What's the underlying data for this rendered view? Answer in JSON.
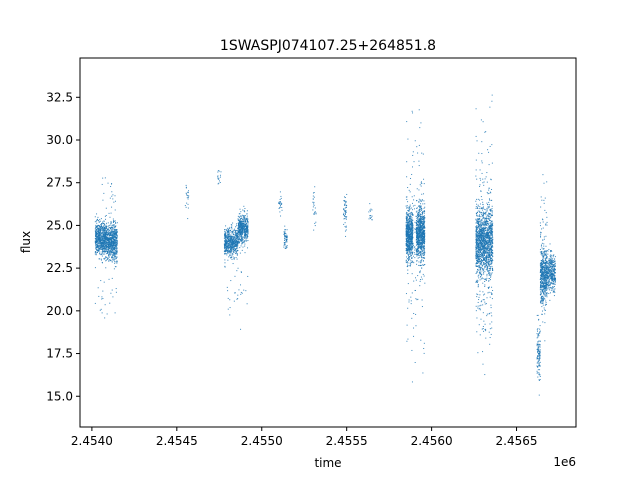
{
  "chart_data": {
    "type": "scatter",
    "title": "1SWASPJ074107.25+264851.8",
    "xlabel": "time",
    "ylabel": "flux",
    "x_offset_label": "1e6",
    "xlim": [
      2.45393,
      2.45685
    ],
    "ylim": [
      13.2,
      34.8
    ],
    "x_ticks": [
      2.454,
      2.4545,
      2.455,
      2.4555,
      2.456,
      2.4565
    ],
    "x_tick_labels": [
      "2.4540",
      "2.4545",
      "2.4550",
      "2.4555",
      "2.4560",
      "2.4565"
    ],
    "y_ticks": [
      15.0,
      17.5,
      20.0,
      22.5,
      25.0,
      27.5,
      30.0,
      32.5
    ],
    "y_tick_labels": [
      "15.0",
      "17.5",
      "20.0",
      "22.5",
      "25.0",
      "27.5",
      "30.0",
      "32.5"
    ],
    "grid": false,
    "marker_color": "#1f77b4",
    "clusters": [
      {
        "x_range": [
          2.45402,
          2.45409
        ],
        "y_center": 24.2,
        "y_spread": 0.8,
        "n": 700
      },
      {
        "x_range": [
          2.45409,
          2.45415
        ],
        "y_center": 24.0,
        "y_spread": 0.9,
        "n": 600
      },
      {
        "x_range": [
          2.45406,
          2.45414
        ],
        "y_center": 26.5,
        "y_spread": 1.4,
        "n": 25
      },
      {
        "x_range": [
          2.45402,
          2.45415
        ],
        "y_center": 20.5,
        "y_spread": 1.5,
        "n": 25
      },
      {
        "x_range": [
          2.45455,
          2.45457
        ],
        "y_center": 26.5,
        "y_spread": 0.7,
        "n": 20
      },
      {
        "x_range": [
          2.45474,
          2.45476
        ],
        "y_center": 27.8,
        "y_spread": 0.4,
        "n": 15
      },
      {
        "x_range": [
          2.45478,
          2.45486
        ],
        "y_center": 24.0,
        "y_spread": 0.7,
        "n": 600
      },
      {
        "x_range": [
          2.45486,
          2.45492
        ],
        "y_center": 24.8,
        "y_spread": 0.7,
        "n": 500
      },
      {
        "x_range": [
          2.45478,
          2.45492
        ],
        "y_center": 21.0,
        "y_spread": 1.5,
        "n": 30
      },
      {
        "x_range": [
          2.4551,
          2.45512
        ],
        "y_center": 26.3,
        "y_spread": 0.6,
        "n": 25
      },
      {
        "x_range": [
          2.45513,
          2.45515
        ],
        "y_center": 24.2,
        "y_spread": 0.6,
        "n": 60
      },
      {
        "x_range": [
          2.4553,
          2.45532
        ],
        "y_center": 26.0,
        "y_spread": 0.8,
        "n": 25
      },
      {
        "x_range": [
          2.45548,
          2.4555
        ],
        "y_center": 25.8,
        "y_spread": 0.8,
        "n": 50
      },
      {
        "x_range": [
          2.45563,
          2.45565
        ],
        "y_center": 25.8,
        "y_spread": 0.5,
        "n": 15
      },
      {
        "x_range": [
          2.45585,
          2.45589
        ],
        "y_center": 24.4,
        "y_spread": 1.2,
        "n": 700
      },
      {
        "x_range": [
          2.45591,
          2.45596
        ],
        "y_center": 24.5,
        "y_spread": 1.3,
        "n": 800
      },
      {
        "x_range": [
          2.45585,
          2.45596
        ],
        "y_center": 24.0,
        "y_spread": 5.0,
        "n": 180
      },
      {
        "x_range": [
          2.45626,
          2.45636
        ],
        "y_center": 24.0,
        "y_spread": 1.5,
        "n": 1300
      },
      {
        "x_range": [
          2.45626,
          2.45636
        ],
        "y_center": 24.0,
        "y_spread": 5.5,
        "n": 300
      },
      {
        "x_range": [
          2.45662,
          2.45664
        ],
        "y_center": 17.5,
        "y_spread": 1.5,
        "n": 120
      },
      {
        "x_range": [
          2.45664,
          2.45668
        ],
        "y_center": 22.0,
        "y_spread": 1.3,
        "n": 500
      },
      {
        "x_range": [
          2.45668,
          2.45673
        ],
        "y_center": 22.2,
        "y_spread": 0.9,
        "n": 350
      },
      {
        "x_range": [
          2.45664,
          2.45668
        ],
        "y_center": 24.0,
        "y_spread": 4.0,
        "n": 60
      }
    ]
  }
}
